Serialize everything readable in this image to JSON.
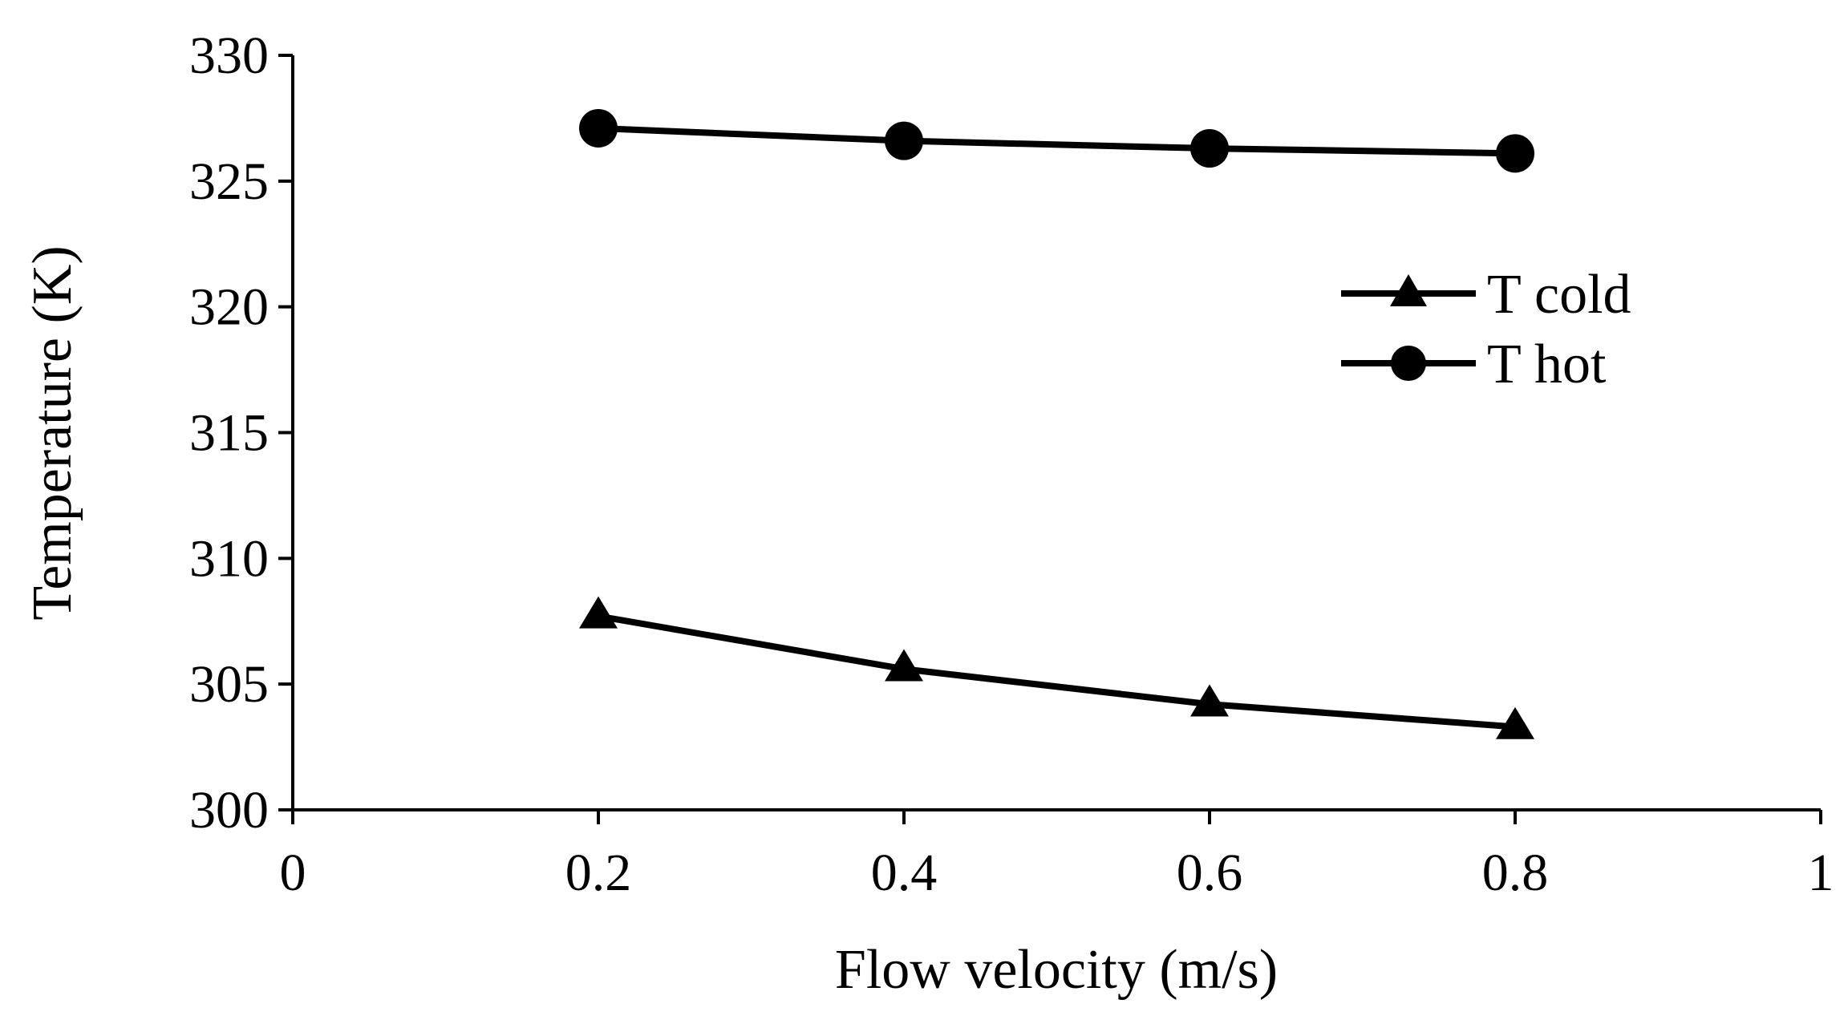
{
  "chart_data": {
    "type": "line",
    "title": "",
    "xlabel": "Flow velocity (m/s)",
    "ylabel": "Temperature (K)",
    "xlim": [
      0,
      1
    ],
    "ylim": [
      300,
      330
    ],
    "x_ticks": [
      0,
      0.2,
      0.4,
      0.6,
      0.8,
      1
    ],
    "x_tick_labels": [
      "0",
      "0.2",
      "0.4",
      "0.6",
      "0.8",
      "1"
    ],
    "y_ticks": [
      300,
      305,
      310,
      315,
      320,
      325,
      330
    ],
    "y_tick_labels": [
      "300",
      "305",
      "310",
      "315",
      "320",
      "325",
      "330"
    ],
    "grid": false,
    "legend_position": "right",
    "series": [
      {
        "name": "T cold",
        "marker": "triangle",
        "color": "#000000",
        "x": [
          0.2,
          0.4,
          0.6,
          0.8
        ],
        "values": [
          307.7,
          305.6,
          304.2,
          303.3
        ]
      },
      {
        "name": "T hot",
        "marker": "circle",
        "color": "#000000",
        "x": [
          0.2,
          0.4,
          0.6,
          0.8
        ],
        "values": [
          327.1,
          326.6,
          326.3,
          326.1
        ]
      }
    ]
  }
}
